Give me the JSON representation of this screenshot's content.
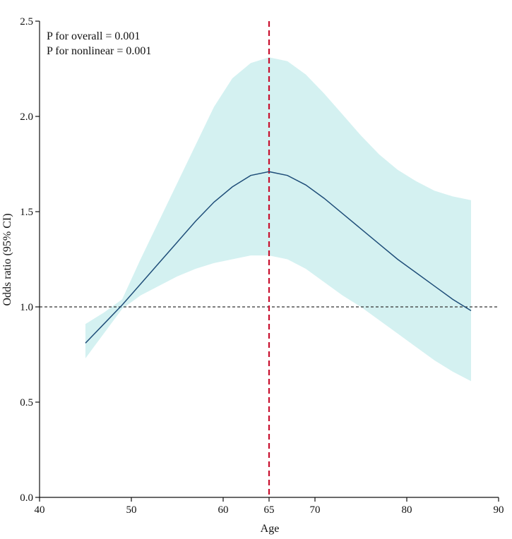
{
  "chart_data": {
    "type": "line",
    "title": "",
    "xlabel": "Age",
    "ylabel": "Odds ratio (95% CI)",
    "xlim": [
      40,
      90
    ],
    "ylim": [
      0.0,
      2.5
    ],
    "x_ticks": [
      40,
      50,
      60,
      65,
      70,
      80,
      90
    ],
    "y_ticks": [
      0.0,
      0.5,
      1.0,
      1.5,
      2.0,
      2.5
    ],
    "x_tick_labels": [
      "40",
      "50",
      "60",
      "65",
      "70",
      "80",
      "90"
    ],
    "y_tick_labels": [
      "0.0",
      "0.5",
      "1.0",
      "1.5",
      "2.0",
      "2.5"
    ],
    "annotations": [
      "P for overall = 0.001",
      "P for nonlinear = 0.001"
    ],
    "reference_line": {
      "orientation": "horizontal",
      "y": 1.0,
      "style": "dashed",
      "color": "#333333"
    },
    "cutoff_line": {
      "orientation": "vertical",
      "x": 65,
      "style": "dashed",
      "color": "#c8102e"
    },
    "grid": false,
    "series": [
      {
        "type": "line",
        "color": "#1f4e79",
        "x": [
          45,
          47,
          49,
          51,
          53,
          55,
          57,
          59,
          61,
          63,
          65,
          67,
          69,
          71,
          73,
          75,
          77,
          79,
          81,
          83,
          85,
          87
        ],
        "y": [
          0.81,
          0.91,
          1.01,
          1.12,
          1.23,
          1.34,
          1.45,
          1.55,
          1.63,
          1.69,
          1.71,
          1.69,
          1.64,
          1.57,
          1.49,
          1.41,
          1.33,
          1.25,
          1.18,
          1.11,
          1.04,
          0.98
        ]
      },
      {
        "type": "ci_band",
        "color": "#d4f1f1",
        "x": [
          45,
          47,
          49,
          51,
          53,
          55,
          57,
          59,
          61,
          63,
          65,
          67,
          69,
          71,
          73,
          75,
          77,
          79,
          81,
          83,
          85,
          87
        ],
        "lower": [
          0.73,
          0.86,
          0.99,
          1.06,
          1.11,
          1.16,
          1.2,
          1.23,
          1.25,
          1.27,
          1.27,
          1.25,
          1.2,
          1.13,
          1.06,
          1.0,
          0.93,
          0.86,
          0.79,
          0.72,
          0.66,
          0.61
        ],
        "upper": [
          0.91,
          0.97,
          1.04,
          1.25,
          1.45,
          1.65,
          1.85,
          2.05,
          2.2,
          2.28,
          2.31,
          2.29,
          2.22,
          2.12,
          2.01,
          1.9,
          1.8,
          1.72,
          1.66,
          1.61,
          1.58,
          1.56
        ]
      }
    ]
  }
}
